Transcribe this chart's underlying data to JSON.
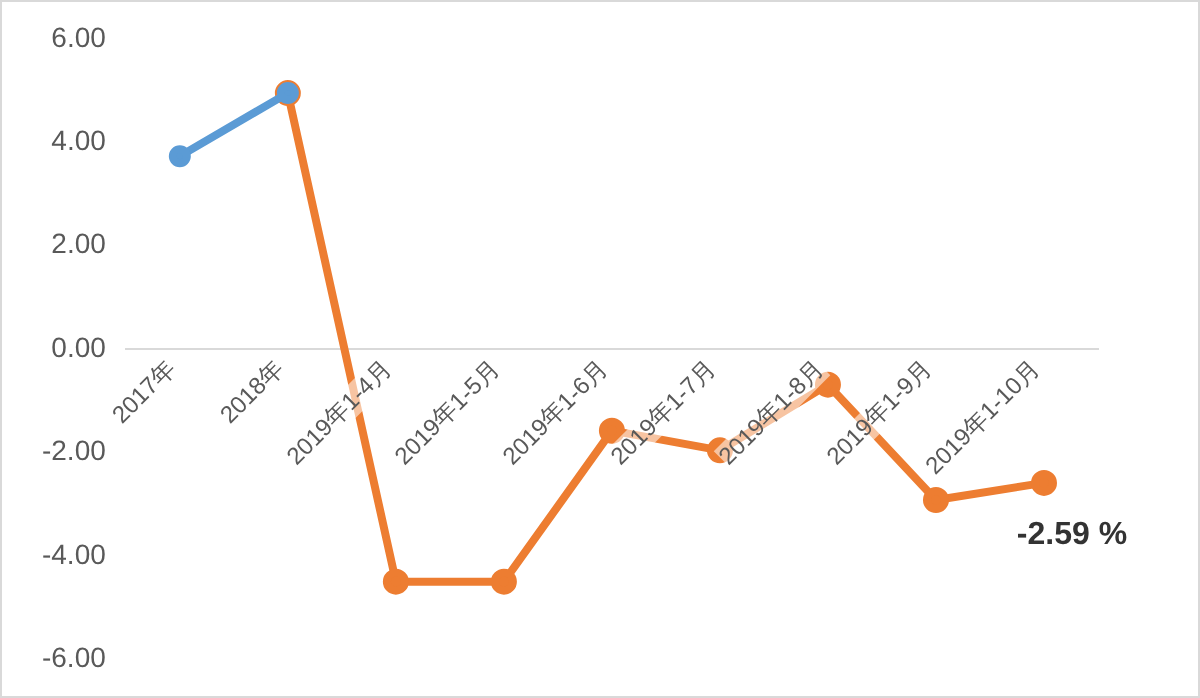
{
  "chart_data": {
    "type": "line",
    "categories": [
      "2017年",
      "2018年",
      "2019年1-4月",
      "2019年1-5月",
      "2019年1-6月",
      "2019年1-7月",
      "2019年1-8月",
      "2019年1-9月",
      "2019年1-10月"
    ],
    "series": [
      {
        "color": "#5b9bd5",
        "values": [
          3.73,
          4.95,
          null,
          null,
          null,
          null,
          null,
          null,
          null
        ]
      },
      {
        "color": "#ed7d31",
        "values": [
          null,
          4.95,
          -4.5,
          -4.5,
          -1.58,
          -1.96,
          -0.69,
          -2.92,
          -2.59
        ]
      }
    ],
    "ylim": [
      -6,
      6
    ],
    "yticks": [
      {
        "value": -6,
        "label": "-6.00"
      },
      {
        "value": -4,
        "label": "-4.00"
      },
      {
        "value": -2,
        "label": "-2.00"
      },
      {
        "value": 0,
        "label": "0.00"
      },
      {
        "value": 2,
        "label": "2.00"
      },
      {
        "value": 4,
        "label": "4.00"
      },
      {
        "value": 6,
        "label": "6.00"
      }
    ],
    "marker": "circle",
    "line_style": "solid",
    "grid": false,
    "legend": false,
    "annotations": [
      {
        "text": "-2.59 %",
        "x": "2019年1-10月",
        "y": -2.59
      }
    ]
  }
}
